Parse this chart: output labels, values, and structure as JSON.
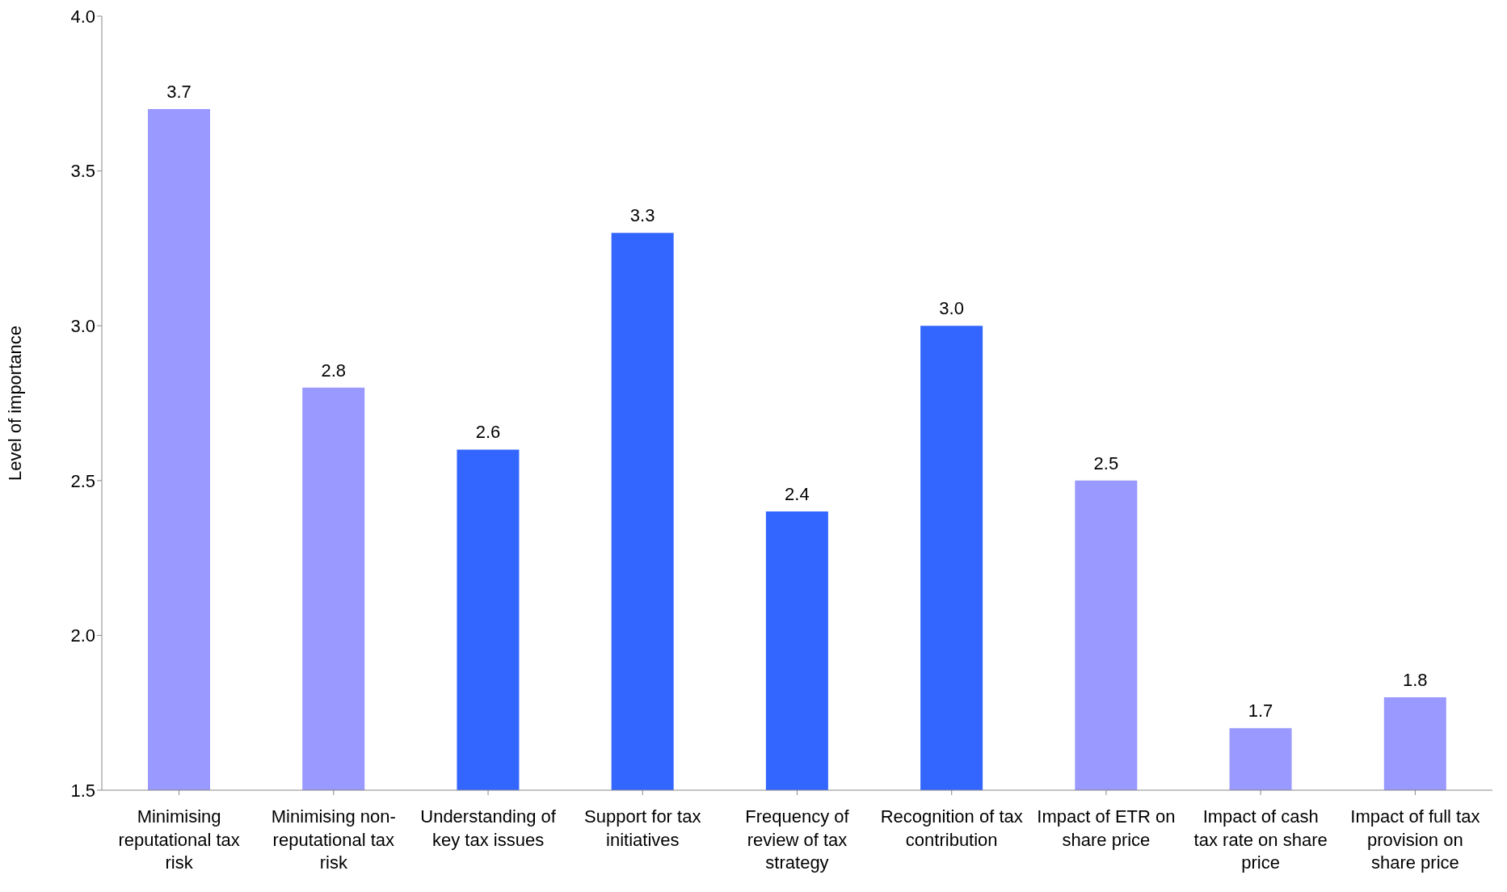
{
  "chart_data": {
    "type": "bar",
    "ylabel": "Level of importance",
    "categories": [
      "Minimising reputational tax risk",
      "Minimising non-reputational tax risk",
      "Understanding of key tax issues",
      "Support for tax initiatives",
      "Frequency of review of tax strategy",
      "Recognition of tax contribution",
      "Impact of ETR on share price",
      "Impact of cash tax rate on share price",
      "Impact of full tax provision on share price"
    ],
    "values": [
      3.7,
      2.8,
      2.6,
      3.3,
      2.4,
      3.0,
      2.5,
      1.7,
      1.8
    ],
    "colors": [
      "#9999ff",
      "#9999ff",
      "#3366ff",
      "#3366ff",
      "#3366ff",
      "#3366ff",
      "#9999ff",
      "#9999ff",
      "#9999ff"
    ],
    "value_labels": [
      "3.7",
      "2.8",
      "2.6",
      "3.3",
      "2.4",
      "3.0",
      "2.5",
      "1.7",
      "1.8"
    ],
    "ylim": [
      1.5,
      4.0
    ],
    "yticks": [
      {
        "value": 1.5,
        "label": "1.5"
      },
      {
        "value": 2,
        "label": "2.0"
      },
      {
        "value": 2.5,
        "label": "2.5"
      },
      {
        "value": 3,
        "label": "3.0"
      },
      {
        "value": 3.5,
        "label": "3.5"
      },
      {
        "value": 4,
        "label": "4.0"
      }
    ],
    "grid": false,
    "legend": false
  }
}
